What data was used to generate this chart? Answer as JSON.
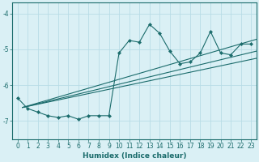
{
  "xlabel": "Humidex (Indice chaleur)",
  "bg_color": "#daf0f5",
  "line_color": "#1a6b6b",
  "grid_color": "#b8dce6",
  "xlim": [
    -0.5,
    23.5
  ],
  "ylim": [
    -7.5,
    -3.7
  ],
  "yticks": [
    -7,
    -6,
    -5,
    -4
  ],
  "xticks": [
    0,
    1,
    2,
    3,
    4,
    5,
    6,
    7,
    8,
    9,
    10,
    11,
    12,
    13,
    14,
    15,
    16,
    17,
    18,
    19,
    20,
    21,
    22,
    23
  ],
  "series": [
    [
      0,
      -6.35
    ],
    [
      1,
      -6.65
    ],
    [
      2,
      -6.75
    ],
    [
      3,
      -6.85
    ],
    [
      4,
      -6.9
    ],
    [
      5,
      -6.85
    ],
    [
      6,
      -6.95
    ],
    [
      7,
      -6.85
    ],
    [
      8,
      -6.85
    ],
    [
      9,
      -6.85
    ],
    [
      10,
      -5.1
    ],
    [
      11,
      -4.75
    ],
    [
      12,
      -4.8
    ],
    [
      13,
      -4.3
    ],
    [
      14,
      -4.55
    ],
    [
      15,
      -5.05
    ],
    [
      16,
      -5.4
    ],
    [
      17,
      -5.35
    ],
    [
      18,
      -5.1
    ],
    [
      19,
      -4.5
    ],
    [
      20,
      -5.1
    ],
    [
      21,
      -5.15
    ],
    [
      22,
      -4.85
    ],
    [
      23,
      -4.85
    ]
  ],
  "regression_lines": [
    {
      "x": [
        0.5,
        23.5
      ],
      "y": [
        -6.62,
        -4.72
      ]
    },
    {
      "x": [
        0.5,
        23.5
      ],
      "y": [
        -6.62,
        -5.05
      ]
    },
    {
      "x": [
        0.5,
        23.5
      ],
      "y": [
        -6.62,
        -5.25
      ]
    }
  ],
  "tick_fontsize": 5.5,
  "xlabel_fontsize": 6.5
}
